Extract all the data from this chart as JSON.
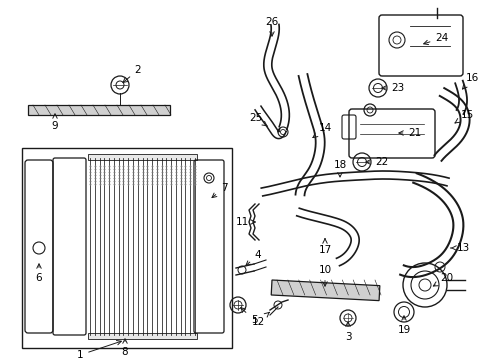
{
  "background_color": "#ffffff",
  "fig_width": 4.89,
  "fig_height": 3.6,
  "dpi": 100,
  "line_color": "#1a1a1a",
  "text_color": "#000000",
  "font_size": 7.5
}
